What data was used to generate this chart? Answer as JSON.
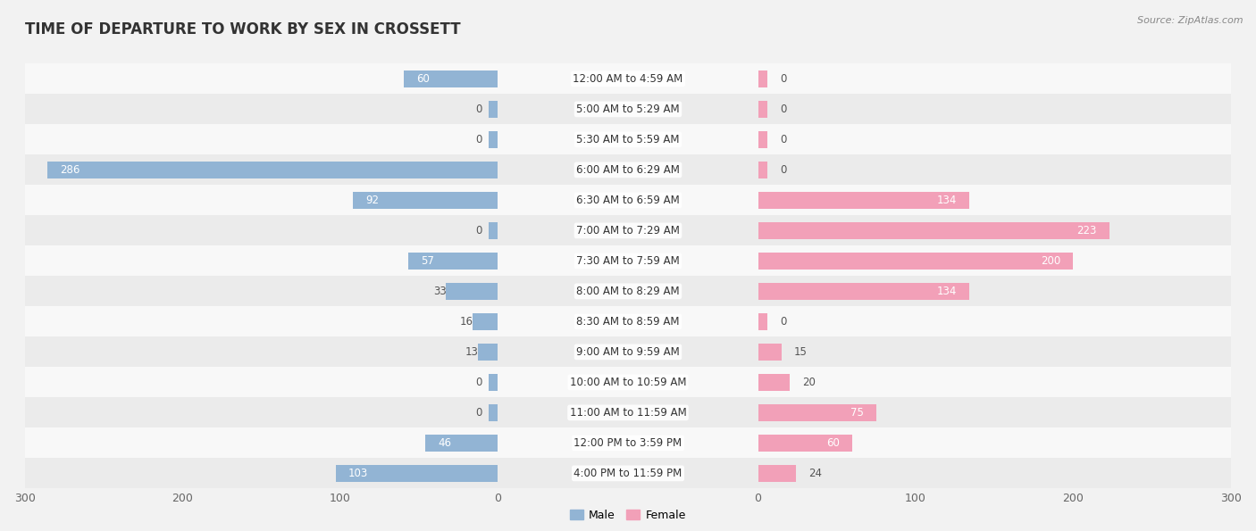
{
  "title": "TIME OF DEPARTURE TO WORK BY SEX IN CROSSETT",
  "source": "Source: ZipAtlas.com",
  "categories": [
    "12:00 AM to 4:59 AM",
    "5:00 AM to 5:29 AM",
    "5:30 AM to 5:59 AM",
    "6:00 AM to 6:29 AM",
    "6:30 AM to 6:59 AM",
    "7:00 AM to 7:29 AM",
    "7:30 AM to 7:59 AM",
    "8:00 AM to 8:29 AM",
    "8:30 AM to 8:59 AM",
    "9:00 AM to 9:59 AM",
    "10:00 AM to 10:59 AM",
    "11:00 AM to 11:59 AM",
    "12:00 PM to 3:59 PM",
    "4:00 PM to 11:59 PM"
  ],
  "male": [
    60,
    0,
    0,
    286,
    92,
    0,
    57,
    33,
    16,
    13,
    0,
    0,
    46,
    103
  ],
  "female": [
    0,
    0,
    0,
    0,
    134,
    223,
    200,
    134,
    0,
    15,
    20,
    75,
    60,
    24
  ],
  "male_color": "#92b4d4",
  "female_color": "#f2a0b8",
  "background_color": "#f2f2f2",
  "row_bg_light": "#f8f8f8",
  "row_bg_dark": "#ebebeb",
  "axis_limit": 300,
  "bar_height": 0.55,
  "title_fontsize": 12,
  "label_fontsize": 8.5,
  "tick_fontsize": 9,
  "legend_fontsize": 9,
  "value_fontsize": 8.5
}
